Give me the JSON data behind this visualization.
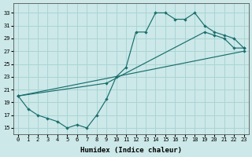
{
  "xlabel": "Humidex (Indice chaleur)",
  "bg_color": "#cce8e8",
  "grid_color": "#aad4d4",
  "line_color": "#1a6e6e",
  "xlim": [
    -0.5,
    23.5
  ],
  "ylim": [
    14,
    34.5
  ],
  "yticks": [
    15,
    17,
    19,
    21,
    23,
    25,
    27,
    29,
    31,
    33
  ],
  "xticks": [
    0,
    1,
    2,
    3,
    4,
    5,
    6,
    7,
    8,
    9,
    10,
    11,
    12,
    13,
    14,
    15,
    16,
    17,
    18,
    19,
    20,
    21,
    22,
    23
  ],
  "line1_x": [
    0,
    1,
    2,
    3,
    4,
    5,
    6,
    7,
    8,
    9,
    10,
    11,
    12,
    13,
    14,
    15,
    16,
    17,
    18,
    19,
    20,
    21,
    22,
    23
  ],
  "line1_y": [
    20,
    18,
    17,
    16.5,
    16,
    15,
    15.5,
    15,
    17,
    19.5,
    23,
    24.5,
    30,
    30,
    33,
    33,
    32,
    32,
    33,
    31,
    30,
    29.5,
    29,
    27.5
  ],
  "line2_x": [
    0,
    23
  ],
  "line2_y": [
    20,
    27
  ],
  "line3_x": [
    0,
    9,
    19,
    20,
    21,
    22,
    23
  ],
  "line3_y": [
    20,
    22,
    30,
    29.5,
    29,
    27.5,
    27.5
  ]
}
